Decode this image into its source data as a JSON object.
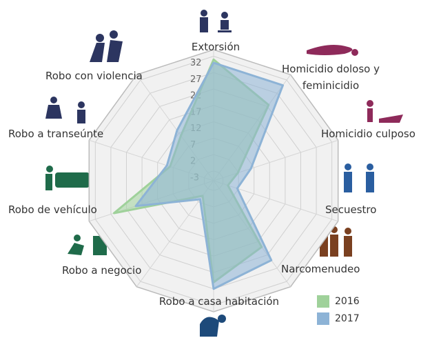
{
  "chart_data": {
    "type": "radar",
    "categories": [
      "Extorsión",
      "Homicidio doloso y feminicidio",
      "Homicidio culposo",
      "Secuestro",
      "Narcomenudeo",
      "Robo a casa habitación",
      "Robo a negocio",
      "Robo de vehículo",
      "Robo a transeúnte",
      "Robo con violencia"
    ],
    "series": [
      {
        "name": "2016",
        "color": "#9fd19a",
        "values": [
          31,
          22.6,
          1.8,
          -1.4,
          19,
          25,
          -0.3,
          26,
          8,
          11
        ]
      },
      {
        "name": "2017",
        "color": "#8db3d6",
        "values": [
          30,
          30,
          6,
          1.6,
          24,
          27,
          1,
          19,
          9,
          13
        ]
      }
    ],
    "ylim": [
      -6,
      34
    ],
    "yticks": [
      -3,
      2,
      7,
      12,
      17,
      22,
      27,
      32
    ],
    "grid": true
  }
}
